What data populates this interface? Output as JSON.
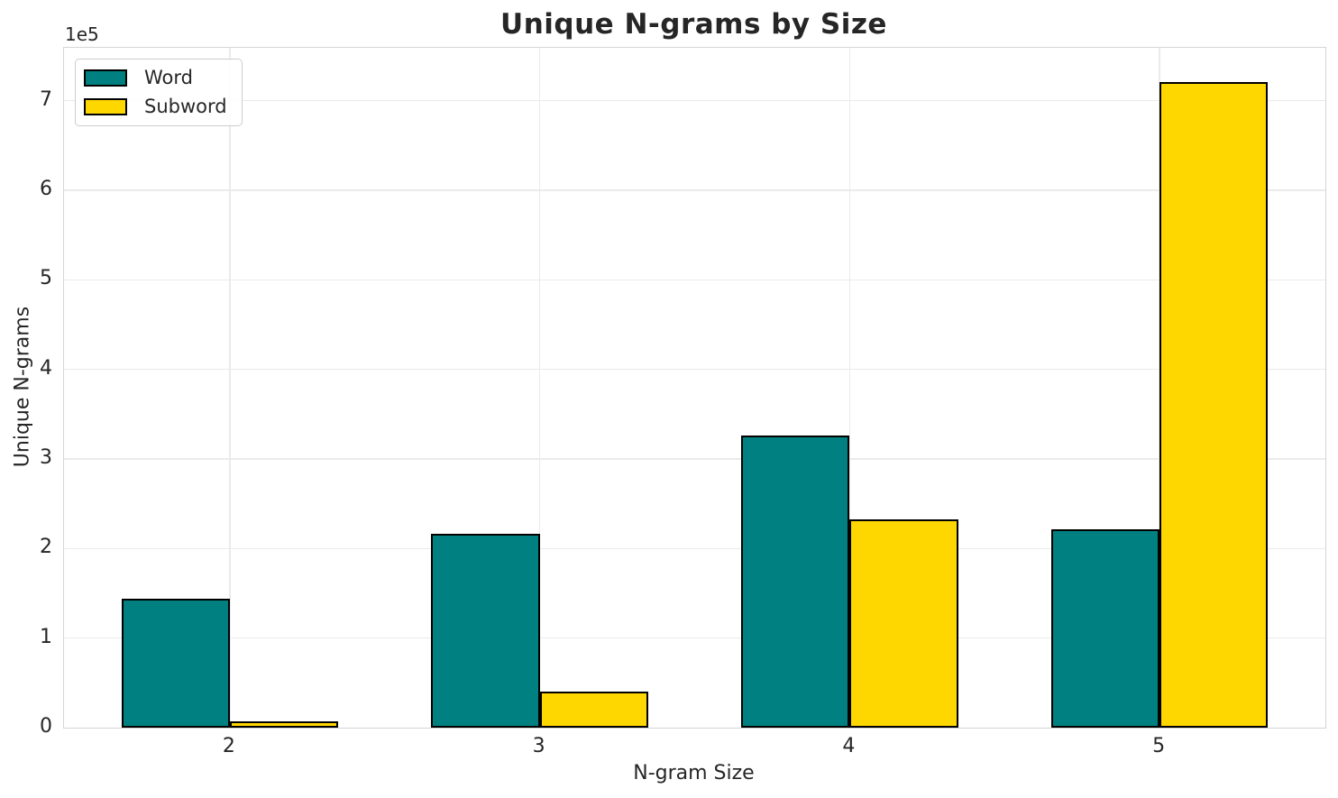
{
  "chart_data": {
    "type": "bar",
    "title": "Unique N-grams by Size",
    "xlabel": "N-gram Size",
    "ylabel": "Unique N-grams",
    "offset_text": "1e5",
    "categories": [
      "2",
      "3",
      "4",
      "5"
    ],
    "series": [
      {
        "name": "Word",
        "color": "#008080",
        "values": [
          143000,
          215000,
          325000,
          220000
        ]
      },
      {
        "name": "Subword",
        "color": "#FFD700",
        "values": [
          6000,
          39000,
          232000,
          720000
        ]
      }
    ],
    "bar_edge_color": "#000000",
    "yticks": [
      0,
      1,
      2,
      3,
      4,
      5,
      6,
      7
    ],
    "ytick_scale": 100000,
    "ylim": [
      0,
      759000
    ],
    "grid": true,
    "legend_position": "upper left",
    "colors": {
      "grid": "#ebebeb",
      "spine": "#d5d5d5",
      "text": "#262626",
      "background": "#ffffff"
    }
  }
}
